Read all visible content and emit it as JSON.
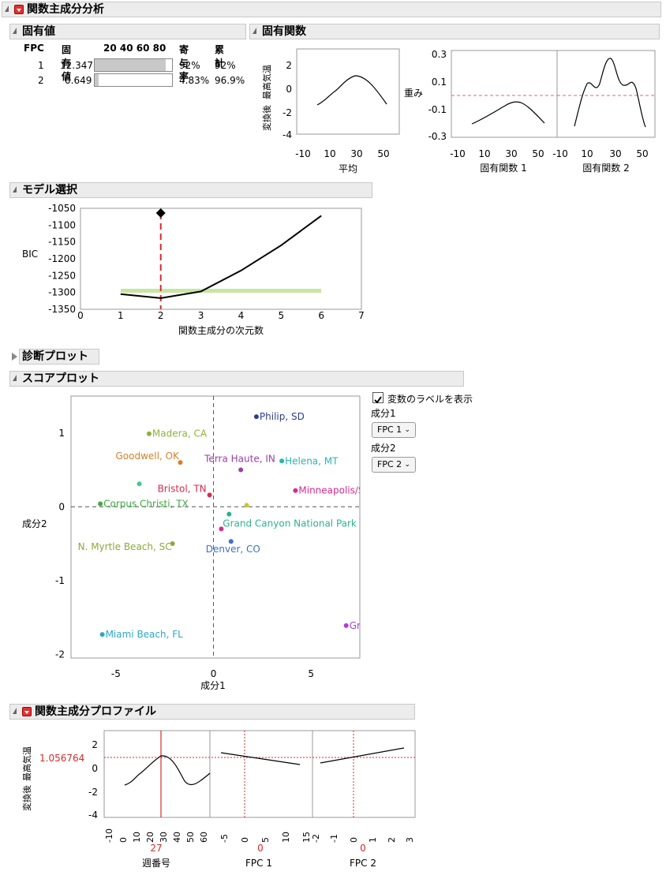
{
  "main": {
    "title": "関数主成分分析"
  },
  "eigenvalues": {
    "title": "固有値",
    "headers": [
      "FPC",
      "固有値",
      "20 40 60 80",
      "寄与率",
      "累計"
    ],
    "rows": [
      {
        "fpc": "1",
        "value": "12.347",
        "pct": "92%",
        "cum": "92%",
        "bar": 0.92
      },
      {
        "fpc": "2",
        "value": "0.649",
        "pct": "4.83%",
        "cum": "96.9%",
        "bar": 0.0483
      }
    ]
  },
  "eigenfunctions": {
    "title": "固有関数",
    "mean_ylabel_1": "変換後",
    "mean_ylabel_2": "最高気温",
    "weight_label": "重み",
    "mean_xlabel": "平均",
    "ef1_xlabel": "固有関数 1",
    "ef2_xlabel": "固有関数 2",
    "mean_yticks": [
      "2",
      "0",
      "-2",
      "-4"
    ],
    "mean_xticks": [
      "-10",
      "10",
      "30",
      "50"
    ],
    "ef_yticks": [
      "0.3",
      "0.1",
      "-0.1",
      "-0.3"
    ],
    "ef1_xticks": [
      "-10",
      "10",
      "30",
      "50"
    ],
    "ef2_xticks": [
      "-10",
      "10",
      "30",
      "50"
    ]
  },
  "model_selection": {
    "title": "モデル選択",
    "ylabel": "BIC",
    "xlabel": "関数主成分の次元数",
    "yticks": [
      "-1050",
      "-1100",
      "-1150",
      "-1200",
      "-1250",
      "-1300",
      "-1350"
    ],
    "xticks": [
      "0",
      "1",
      "2",
      "3",
      "4",
      "5",
      "6",
      "7"
    ]
  },
  "diagnostic": {
    "title": "診断プロット"
  },
  "score_plot": {
    "title": "スコアプロット",
    "xlabel": "成分1",
    "ylabel": "成分2",
    "xticks": [
      "-5",
      "0",
      "5"
    ],
    "yticks": [
      "1",
      "0",
      "-1",
      "-2"
    ],
    "show_labels_text": "変数のラベルを表示",
    "comp1_label": "成分1",
    "comp1_value": "FPC 1",
    "comp2_label": "成分2",
    "comp2_value": "FPC 2",
    "points": [
      {
        "label": "Philip, SD",
        "x": 2.2,
        "y": 1.22,
        "color": "#2b3f8f"
      },
      {
        "label": "Madera, CA",
        "x": -3.3,
        "y": 0.99,
        "color": "#8db33a"
      },
      {
        "label": "Goodwell, OK",
        "x": -1.7,
        "y": 0.6,
        "color": "#d4812b"
      },
      {
        "label": "Helena, MT",
        "x": 3.5,
        "y": 0.62,
        "color": "#2bb3b3"
      },
      {
        "label": "Terra Haute, IN",
        "x": 1.4,
        "y": 0.5,
        "color": "#9b3fa8"
      },
      {
        "label": "",
        "x": -3.8,
        "y": 0.31,
        "color": "#4cc48a"
      },
      {
        "label": "Minneapolis/S",
        "x": 4.2,
        "y": 0.22,
        "color": "#d62b8f"
      },
      {
        "label": "Bristol, TN",
        "x": -0.2,
        "y": 0.16,
        "color": "#d62b4a"
      },
      {
        "label": "Corpus Christi, TX",
        "x": -5.8,
        "y": 0.04,
        "color": "#3faa3f"
      },
      {
        "label": "",
        "x": 1.7,
        "y": 0.02,
        "color": "#c8c82b"
      },
      {
        "label": "Grand Canyon National Park",
        "x": 0.8,
        "y": -0.1,
        "color": "#2bb38f"
      },
      {
        "label": "",
        "x": 0.4,
        "y": -0.3,
        "color": "#d62b8f"
      },
      {
        "label": "N. Myrtle Beach, SC",
        "x": -2.1,
        "y": -0.5,
        "color": "#8da83a"
      },
      {
        "label": "Denver, CO",
        "x": 0.9,
        "y": -0.47,
        "color": "#3f6fc8"
      },
      {
        "label": "Miami Beach, FL",
        "x": -5.7,
        "y": -1.73,
        "color": "#2ba8c8"
      },
      {
        "label": "Gr",
        "x": 6.8,
        "y": -1.61,
        "color": "#a83fd6"
      }
    ]
  },
  "profiler": {
    "title": "関数主成分プロファイル",
    "ylabel_1": "変換後",
    "ylabel_2": "最高気温",
    "yvalue": "1.056764",
    "yticks": [
      "2",
      "0",
      "-2",
      "-4"
    ],
    "f1_label": "週番号",
    "f1_value": "27",
    "f1_xticks": [
      "-10",
      "0",
      "10",
      "20",
      "30",
      "40",
      "50",
      "60"
    ],
    "f2_label": "FPC 1",
    "f2_value": "0",
    "f2_xticks": [
      "-5",
      "0",
      "5",
      "10",
      "15"
    ],
    "f3_label": "FPC 2",
    "f3_value": "0",
    "f3_xticks": [
      "-2",
      "-1",
      "0",
      "1",
      "2",
      "3"
    ]
  },
  "chart_data": [
    {
      "type": "line",
      "title": "",
      "xlabel": "関数主成分の次元数",
      "ylabel": "BIC",
      "x": [
        1,
        2,
        3,
        4,
        5,
        6
      ],
      "series": [
        {
          "values": [
            -1305,
            -1317,
            -1297,
            -1235,
            -1160,
            -1072
          ]
        }
      ],
      "selected_x": 2,
      "xlim": [
        0,
        7
      ],
      "ylim": [
        -1350,
        -1050
      ]
    },
    {
      "type": "scatter",
      "title": "",
      "xlabel": "成分1",
      "ylabel": "成分2",
      "xlim": [
        -7.3,
        7.5
      ],
      "ylim": [
        -2.05,
        1.5
      ]
    }
  ]
}
